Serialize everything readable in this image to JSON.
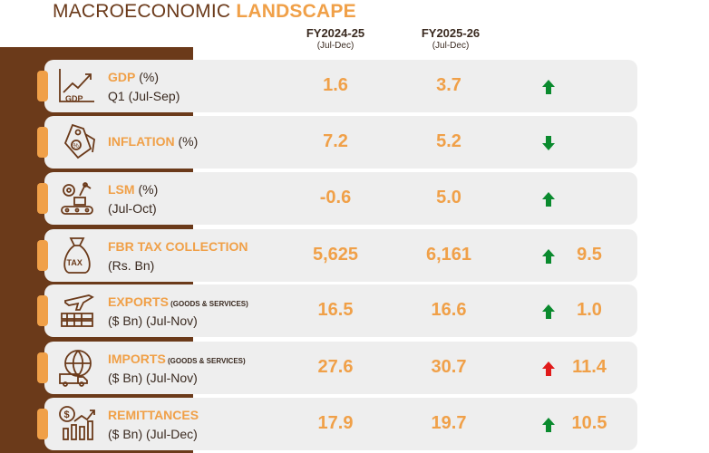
{
  "header": {
    "title_part1": "MACROECONOMIC ",
    "title_part2": "LANDSCAPE"
  },
  "columns": [
    {
      "year": "FY2024-25",
      "period": "(Jul-Dec)"
    },
    {
      "year": "FY2025-26",
      "period": "(Jul-Dec)"
    }
  ],
  "colors": {
    "brown": "#6b3a1a",
    "orange": "#f0a048",
    "up_green": "#0a8a2e",
    "down_green": "#0a8a2e",
    "up_red": "#e01a1a"
  },
  "rows": [
    {
      "name": "GDP",
      "unit": " (%)",
      "qualifier": "",
      "line2": "Q1 (Jul-Sep)",
      "prev": "1.6",
      "curr": "3.7",
      "trend": "up",
      "trend_color": "green",
      "change": "",
      "icon": "gdp-chart-icon"
    },
    {
      "name": "INFLATION",
      "unit": " (%)",
      "qualifier": "",
      "line2": "",
      "prev": "7.2",
      "curr": "5.2",
      "trend": "down",
      "trend_color": "green",
      "change": "",
      "icon": "price-tag-icon"
    },
    {
      "name": "LSM",
      "unit": " (%)",
      "qualifier": "",
      "line2": "(Jul-Oct)",
      "prev": "-0.6",
      "curr": "5.0",
      "trend": "up",
      "trend_color": "green",
      "change": "",
      "icon": "factory-robot-icon"
    },
    {
      "name": "FBR TAX COLLECTION",
      "unit": "",
      "qualifier": "",
      "line2": "(Rs. Bn)",
      "prev": "5,625",
      "curr": "6,161",
      "trend": "up",
      "trend_color": "green",
      "change": "9.5",
      "icon": "tax-bag-icon"
    },
    {
      "name": "EXPORTS",
      "unit": "",
      "qualifier": " (GOODS & SERVICES)",
      "line2": "($ Bn) (Jul-Nov)",
      "prev": "16.5",
      "curr": "16.6",
      "trend": "up",
      "trend_color": "green",
      "change": "1.0",
      "icon": "cargo-plane-icon"
    },
    {
      "name": "IMPORTS",
      "unit": "",
      "qualifier": " (GOODS & SERVICES)",
      "line2": "($ Bn) (Jul-Nov)",
      "prev": "27.6",
      "curr": "30.7",
      "trend": "up",
      "trend_color": "red",
      "change": "11.4",
      "icon": "globe-truck-icon"
    },
    {
      "name": "REMITTANCES",
      "unit": "",
      "qualifier": "",
      "line2": "($ Bn) (Jul-Dec)",
      "prev": "17.9",
      "curr": "19.7",
      "trend": "up",
      "trend_color": "green",
      "change": "10.5",
      "icon": "money-growth-icon"
    }
  ]
}
